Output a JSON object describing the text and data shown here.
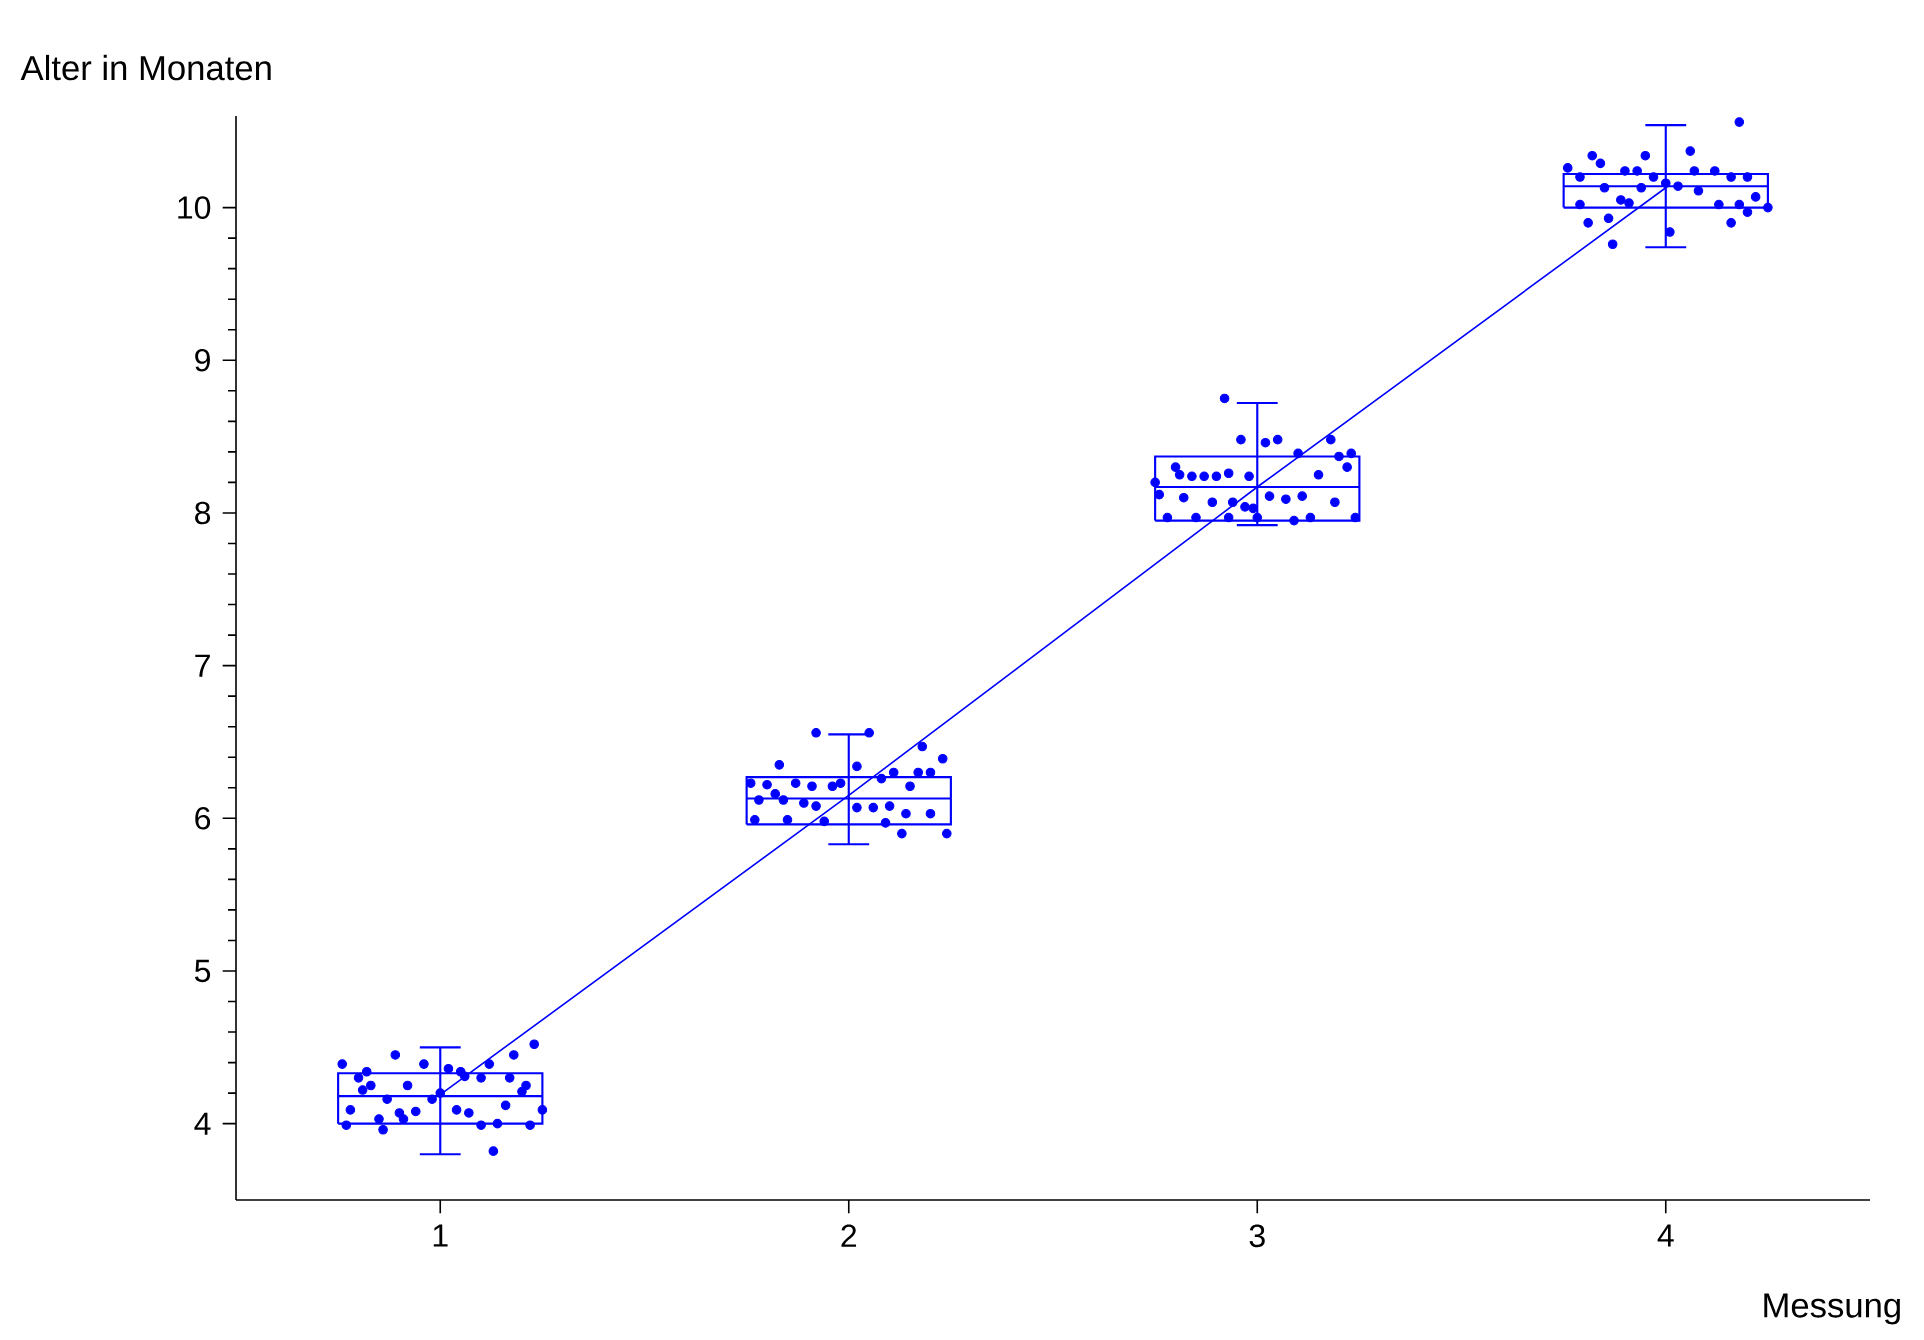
{
  "chart_data": {
    "type": "box",
    "xlabel": "Messung",
    "ylabel": "Alter in Monaten",
    "x": [
      1,
      2,
      3,
      4
    ],
    "xlim": [
      0.5,
      4.5
    ],
    "ylim": [
      3.5,
      10.6
    ],
    "xticks": [
      1,
      2,
      3,
      4
    ],
    "yticks": [
      4,
      5,
      6,
      7,
      8,
      9,
      10
    ],
    "color": "#0000ff",
    "boxes": [
      {
        "low": 3.8,
        "q1": 4.0,
        "median": 4.18,
        "q3": 4.33,
        "high": 4.5
      },
      {
        "low": 5.83,
        "q1": 5.96,
        "median": 6.13,
        "q3": 6.27,
        "high": 6.55
      },
      {
        "low": 7.92,
        "q1": 7.95,
        "median": 8.17,
        "q3": 8.37,
        "high": 8.72
      },
      {
        "low": 9.74,
        "q1": 10.0,
        "median": 10.14,
        "q3": 10.22,
        "high": 10.54
      }
    ],
    "series": [
      {
        "type": "scatter",
        "color": "#0000ff",
        "marker": "circle",
        "x": [
          0.76,
          0.8,
          0.82,
          0.83,
          0.81,
          0.89,
          0.92,
          0.96,
          1.02,
          1.05,
          1.06,
          1.12,
          1.1,
          1.17,
          1.18,
          1.23,
          1.2,
          1.21,
          0.78,
          0.77,
          0.85,
          0.86,
          0.9,
          0.91,
          0.94,
          0.98,
          1.0,
          1.04,
          1.07,
          1.1,
          1.14,
          1.13,
          1.22,
          1.25,
          1.16,
          0.87,
          1.92,
          2.05,
          1.83,
          2.02,
          2.18,
          2.23,
          1.76,
          1.8,
          1.82,
          1.87,
          1.91,
          1.96,
          1.98,
          2.08,
          2.11,
          2.17,
          2.2,
          2.15,
          1.78,
          1.84,
          1.89,
          1.92,
          2.02,
          2.06,
          2.1,
          1.77,
          1.85,
          1.94,
          2.09,
          2.14,
          2.2,
          2.13,
          2.24,
          2.92,
          2.96,
          3.02,
          3.05,
          3.1,
          3.18,
          3.2,
          3.23,
          3.22,
          3.15,
          2.75,
          2.76,
          2.8,
          2.81,
          2.84,
          2.87,
          2.9,
          2.93,
          2.98,
          2.82,
          2.89,
          2.94,
          2.99,
          3.03,
          3.07,
          3.11,
          3.19,
          2.78,
          2.85,
          2.93,
          3.0,
          3.09,
          3.13,
          3.24,
          2.97,
          4.18,
          3.82,
          3.84,
          3.95,
          4.06,
          3.76,
          3.79,
          3.9,
          3.93,
          3.97,
          4.0,
          4.07,
          4.12,
          4.16,
          4.2,
          3.85,
          3.94,
          4.03,
          4.08,
          4.22,
          3.79,
          3.89,
          3.91,
          4.13,
          4.18,
          4.25,
          3.81,
          3.86,
          3.87,
          4.01,
          4.16,
          4.2
        ],
        "values": [
          4.39,
          4.3,
          4.34,
          4.25,
          4.22,
          4.45,
          4.25,
          4.39,
          4.36,
          4.34,
          4.31,
          4.39,
          4.3,
          4.3,
          4.45,
          4.52,
          4.21,
          4.25,
          4.09,
          3.99,
          4.03,
          3.96,
          4.07,
          4.03,
          4.08,
          4.16,
          4.2,
          4.09,
          4.07,
          3.99,
          4.0,
          3.82,
          3.99,
          4.09,
          4.12,
          4.16,
          6.56,
          6.56,
          6.35,
          6.34,
          6.47,
          6.39,
          6.23,
          6.22,
          6.16,
          6.23,
          6.21,
          6.21,
          6.23,
          6.26,
          6.3,
          6.3,
          6.3,
          6.21,
          6.12,
          6.12,
          6.1,
          6.08,
          6.07,
          6.07,
          6.08,
          5.99,
          5.99,
          5.98,
          5.97,
          6.03,
          6.03,
          5.9,
          5.9,
          8.75,
          8.48,
          8.46,
          8.48,
          8.39,
          8.48,
          8.37,
          8.39,
          8.3,
          8.25,
          8.2,
          8.12,
          8.3,
          8.25,
          8.24,
          8.24,
          8.24,
          8.26,
          8.24,
          8.1,
          8.07,
          8.07,
          8.03,
          8.11,
          8.09,
          8.11,
          8.07,
          7.97,
          7.97,
          7.97,
          7.97,
          7.95,
          7.97,
          7.97,
          8.04,
          10.56,
          10.34,
          10.29,
          10.34,
          10.37,
          10.26,
          10.2,
          10.24,
          10.24,
          10.2,
          10.16,
          10.24,
          10.24,
          10.2,
          10.2,
          10.13,
          10.13,
          10.14,
          10.11,
          10.07,
          10.02,
          10.05,
          10.03,
          10.02,
          10.02,
          10.0,
          9.9,
          9.93,
          9.76,
          9.84,
          9.9,
          9.97
        ]
      },
      {
        "type": "line",
        "color": "#0000ff",
        "x": [
          1,
          2,
          3,
          4
        ],
        "values": [
          4.19,
          6.15,
          8.17,
          10.13
        ]
      }
    ]
  }
}
